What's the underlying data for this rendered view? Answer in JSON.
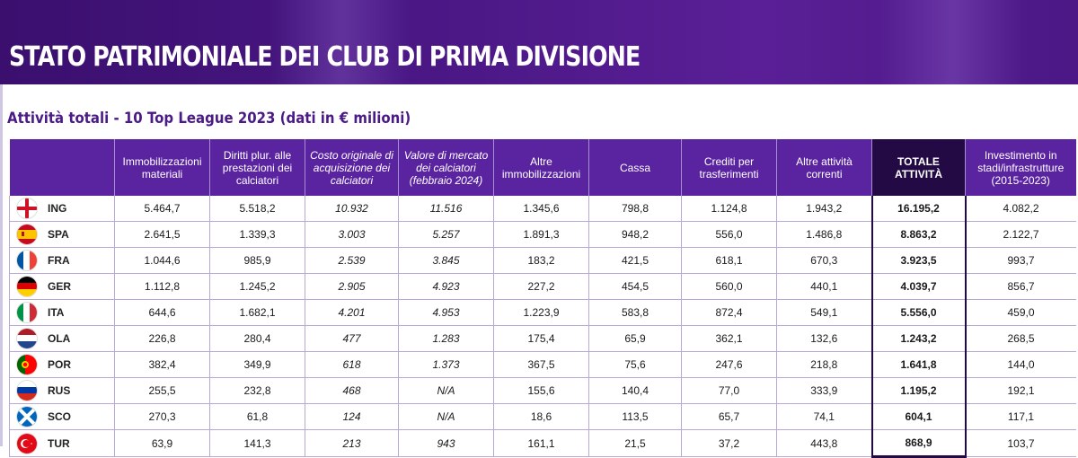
{
  "title": "STATO PATRIMONIALE DEI CLUB DI PRIMA DIVISIONE",
  "subtitle": "Attività totali - 10 Top League 2023 (dati in € milioni)",
  "headers": [
    "",
    "Immobilizzazioni materiali",
    "Diritti plur. alle prestazioni dei calciatori",
    "Costo originale di acquisizione dei calciatori",
    "Valore di mercato dei calciatori (febbraio 2024)",
    "Altre immobilizzazioni",
    "Cassa",
    "Crediti per trasferimenti",
    "Altre attività correnti",
    "TOTALE ATTIVITÀ",
    "Investimento in stadi/infrastrutture (2015-2023)"
  ],
  "rows": [
    {
      "code": "ING",
      "flag": "england-flag-icon",
      "values": [
        "5.464,7",
        "5.518,2",
        "10.932",
        "11.516",
        "1.345,6",
        "798,8",
        "1.124,8",
        "1.943,2",
        "16.195,2",
        "4.082,2"
      ]
    },
    {
      "code": "SPA",
      "flag": "spain-flag-icon",
      "values": [
        "2.641,5",
        "1.339,3",
        "3.003",
        "5.257",
        "1.891,3",
        "948,2",
        "556,0",
        "1.486,8",
        "8.863,2",
        "2.122,7"
      ]
    },
    {
      "code": "FRA",
      "flag": "france-flag-icon",
      "values": [
        "1.044,6",
        "985,9",
        "2.539",
        "3.845",
        "183,2",
        "421,5",
        "618,1",
        "670,3",
        "3.923,5",
        "993,7"
      ]
    },
    {
      "code": "GER",
      "flag": "germany-flag-icon",
      "values": [
        "1.112,8",
        "1.245,2",
        "2.905",
        "4.923",
        "227,2",
        "454,5",
        "560,0",
        "440,1",
        "4.039,7",
        "856,7"
      ]
    },
    {
      "code": "ITA",
      "flag": "italy-flag-icon",
      "values": [
        "644,6",
        "1.682,1",
        "4.201",
        "4.953",
        "1.223,9",
        "583,8",
        "872,4",
        "549,1",
        "5.556,0",
        "459,0"
      ]
    },
    {
      "code": "OLA",
      "flag": "netherlands-flag-icon",
      "values": [
        "226,8",
        "280,4",
        "477",
        "1.283",
        "175,4",
        "65,9",
        "362,1",
        "132,6",
        "1.243,2",
        "268,5"
      ]
    },
    {
      "code": "POR",
      "flag": "portugal-flag-icon",
      "values": [
        "382,4",
        "349,9",
        "618",
        "1.373",
        "367,5",
        "75,6",
        "247,6",
        "218,8",
        "1.641,8",
        "144,0"
      ]
    },
    {
      "code": "RUS",
      "flag": "russia-flag-icon",
      "values": [
        "255,5",
        "232,8",
        "468",
        "N/A",
        "155,6",
        "140,4",
        "77,0",
        "333,9",
        "1.195,2",
        "192,1"
      ]
    },
    {
      "code": "SCO",
      "flag": "scotland-flag-icon",
      "values": [
        "270,3",
        "61,8",
        "124",
        "N/A",
        "18,6",
        "113,5",
        "65,7",
        "74,1",
        "604,1",
        "117,1"
      ]
    },
    {
      "code": "TUR",
      "flag": "turkey-flag-icon",
      "values": [
        "63,9",
        "141,3",
        "213",
        "943",
        "161,1",
        "21,5",
        "37,2",
        "443,8",
        "868,9",
        "103,7"
      ]
    }
  ],
  "colors": {
    "banner": "#4a1785",
    "header": "#5a24a0",
    "total_header": "#230a44",
    "subtitle": "#4a1a86"
  }
}
